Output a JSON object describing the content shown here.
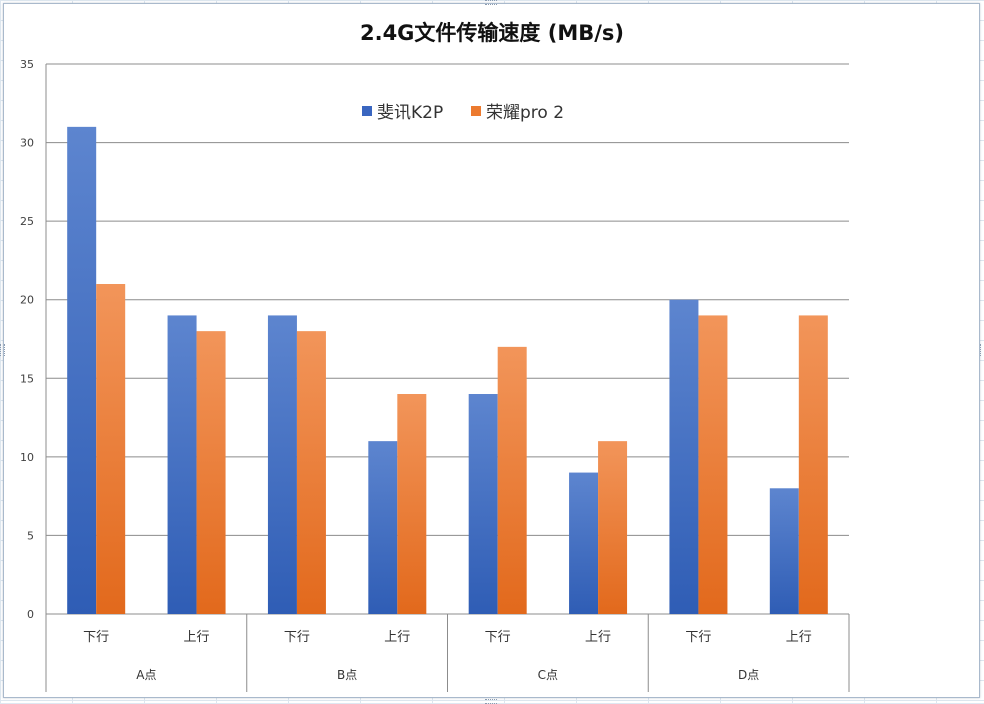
{
  "chart_data": {
    "type": "bar",
    "title": "2.4G文件传输速度 (MB/s)",
    "xlabel": "",
    "ylabel": "",
    "ylim": [
      0,
      35
    ],
    "yticks": [
      "0",
      "5",
      "10",
      "15",
      "20",
      "25",
      "30",
      "35"
    ],
    "groups": [
      "A点",
      "B点",
      "C点",
      "D点"
    ],
    "categories": [
      "下行",
      "上行",
      "下行",
      "上行",
      "下行",
      "上行",
      "下行",
      "上行"
    ],
    "series": [
      {
        "name": "斐讯K2P",
        "values": [
          31,
          19,
          19,
          11,
          14,
          9,
          20,
          8
        ]
      },
      {
        "name": "荣耀pro 2",
        "values": [
          21,
          18,
          18,
          14,
          17,
          11,
          19,
          19
        ]
      }
    ],
    "grid": true,
    "legend_position": "top-center",
    "colors": {
      "series1_top": "#5d85cf",
      "series1_bottom": "#2f5db5",
      "series2_top": "#f2955a",
      "series2_bottom": "#e2691c",
      "gridline": "#8c8c8c"
    }
  }
}
